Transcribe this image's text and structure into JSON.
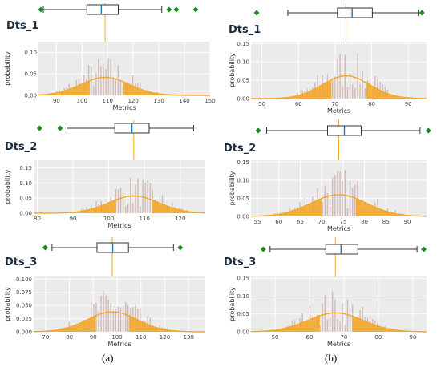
{
  "captions": [
    "(a)",
    "(b)"
  ],
  "colors": {
    "panel_bg": "#ebebeb",
    "grid": "#ffffff",
    "hist": "#c9a9a6",
    "curve": "#f5a623",
    "fill": "#f5a623",
    "box": "#333333",
    "median": "#1f77b4",
    "outlier": "#1a8a1a",
    "vline": "#f5a623"
  },
  "chart_data": [
    {
      "type": "area",
      "title": "Dts_1",
      "xlabel": "Metrics",
      "ylabel": "probability",
      "xlim": [
        83,
        150
      ],
      "ylim": [
        0,
        0.125
      ],
      "xticks": [
        90,
        100,
        110,
        120,
        130,
        140,
        150
      ],
      "yticks": [
        0.0,
        0.05,
        0.1
      ],
      "ytick_labels": [
        "0.00",
        "0.05",
        "0.10"
      ],
      "mean": 109,
      "sd": 9.5,
      "peak": 0.042,
      "box": {
        "q1": 103,
        "median": 109,
        "q3": 116,
        "whisker_low": 85,
        "whisker_high": 134,
        "outliers": [
          84,
          137,
          140,
          148
        ]
      }
    },
    {
      "type": "area",
      "title": "Dts_1",
      "xlabel": "Metrics",
      "ylabel": "probability",
      "xlim": [
        47,
        95
      ],
      "ylim": [
        0,
        0.155
      ],
      "xticks": [
        50,
        60,
        70,
        80,
        90
      ],
      "yticks": [
        0.0,
        0.05,
        0.1,
        0.15
      ],
      "ytick_labels": [
        "0.00",
        "0.05",
        "0.10",
        "0.15"
      ],
      "mean": 73,
      "sd": 6.5,
      "peak": 0.062,
      "box": {
        "q1": 69,
        "median": 73,
        "q3": 78.5,
        "whisker_low": 55.5,
        "whisker_high": 91,
        "outliers": [
          47,
          92
        ]
      }
    },
    {
      "type": "area",
      "title": "Dts_2",
      "xlabel": "Metrics",
      "ylabel": "probability",
      "xlim": [
        79,
        127
      ],
      "ylim": [
        0,
        0.175
      ],
      "xticks": [
        80,
        90,
        100,
        110,
        120
      ],
      "yticks": [
        0.0,
        0.05,
        0.1,
        0.15
      ],
      "ytick_labels": [
        "0.00",
        "0.05",
        "0.10",
        "0.15"
      ],
      "mean": 107,
      "sd": 7,
      "peak": 0.057,
      "box": {
        "q1": 102,
        "median": 107,
        "q3": 112,
        "whisker_low": 88,
        "whisker_high": 125,
        "outliers": [
          80,
          86
        ]
      }
    },
    {
      "type": "area",
      "title": "Dts_2",
      "xlabel": "Metrics",
      "ylabel": "probability",
      "xlim": [
        53.5,
        94.5
      ],
      "ylim": [
        0,
        0.155
      ],
      "xticks": [
        55,
        60,
        65,
        70,
        75,
        80,
        85,
        90
      ],
      "yticks": [
        0.0,
        0.05,
        0.1,
        0.15
      ],
      "ytick_labels": [
        "0.00",
        "0.05",
        "0.10",
        "0.15"
      ],
      "mean": 74,
      "sd": 6.5,
      "peak": 0.06,
      "box": {
        "q1": 70,
        "median": 74,
        "q3": 78,
        "whisker_low": 55.5,
        "whisker_high": 92,
        "outliers": [
          53.5,
          94
        ]
      }
    },
    {
      "type": "area",
      "title": "Dts_3",
      "xlabel": "Metrics",
      "ylabel": "probability",
      "xlim": [
        65,
        137
      ],
      "ylim": [
        0,
        0.105
      ],
      "xticks": [
        70,
        80,
        90,
        100,
        110,
        120,
        130
      ],
      "yticks": [
        0.0,
        0.025,
        0.05,
        0.075,
        0.1
      ],
      "ytick_labels": [
        "0.000",
        "0.025",
        "0.050",
        "0.075",
        "0.100"
      ],
      "mean": 98,
      "sd": 10.5,
      "peak": 0.038,
      "box": {
        "q1": 91,
        "median": 98,
        "q3": 105,
        "whisker_low": 71,
        "whisker_high": 125,
        "outliers": [
          68,
          128
        ]
      }
    },
    {
      "type": "area",
      "title": "Dts_3",
      "xlabel": "Metrics",
      "ylabel": "probability",
      "xlim": [
        43,
        94
      ],
      "ylim": [
        0,
        0.155
      ],
      "xticks": [
        50,
        60,
        70,
        80,
        90
      ],
      "yticks": [
        0.0,
        0.05,
        0.1,
        0.15
      ],
      "ytick_labels": [
        "0.00",
        "0.05",
        "0.10",
        "0.15"
      ],
      "mean": 67.5,
      "sd": 8,
      "peak": 0.053,
      "box": {
        "q1": 63,
        "median": 67.5,
        "q3": 72.5,
        "whisker_low": 46.5,
        "whisker_high": 90,
        "outliers": [
          44.5,
          92
        ]
      }
    }
  ]
}
